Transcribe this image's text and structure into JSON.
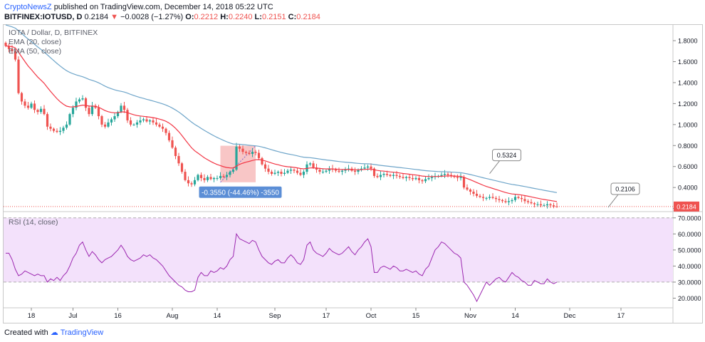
{
  "header": {
    "publisher": "CryptoNewsZ",
    "published_text": "published on TradingView.com, December 14, 2018 05:22 UTC",
    "symbol_line": "BITFINEX:IOTUSD, D",
    "last": "0.2184",
    "down_arrow": "▼",
    "change": "−0.0028 (−1.27%)",
    "o_label": "O:",
    "o_val": "0.2212",
    "h_label": "H:",
    "h_val": "0.2240",
    "l_label": "L:",
    "l_val": "0.2151",
    "c_label": "C:",
    "c_val": "0.2184"
  },
  "legend": {
    "title": "IOTA / Dollar, D, BITFINEX",
    "ema20": "EMA (20, close)",
    "ema50": "EMA (50, close)",
    "rsi": "RSI (14, close)"
  },
  "footer": {
    "created_with": "Created with",
    "brand": "TradingView"
  },
  "colors": {
    "up": "#26a69a",
    "down": "#ef5350",
    "ema20": "#f23645",
    "ema50": "#6ea5c9",
    "rsi": "#9c27b0",
    "rsi_band": "#f3e1fb",
    "price_tag": "#ef5350",
    "measure_box": "#f5b3b3",
    "measure_label": "#5b8ed6"
  },
  "chart_data": [
    {
      "type": "candlestick",
      "title": "IOTA / Dollar, D, BITFINEX",
      "ylim": [
        0.17,
        1.95
      ],
      "y_ticks": [
        "1.8000",
        "1.6000",
        "1.4000",
        "1.2000",
        "1.0000",
        "0.8000",
        "0.6000",
        "0.4000",
        "0.2000"
      ],
      "x_ticks": [
        {
          "label": "18",
          "i": 8
        },
        {
          "label": "Jul",
          "i": 21
        },
        {
          "label": "16",
          "i": 35
        },
        {
          "label": "Aug",
          "i": 52
        },
        {
          "label": "14",
          "i": 66
        },
        {
          "label": "Sep",
          "i": 84
        },
        {
          "label": "17",
          "i": 100
        },
        {
          "label": "Oct",
          "i": 114
        },
        {
          "label": "15",
          "i": 128
        },
        {
          "label": "Nov",
          "i": 145
        },
        {
          "label": "14",
          "i": 159
        },
        {
          "label": "Dec",
          "i": 176
        },
        {
          "label": "17",
          "i": 192
        }
      ],
      "last_price_tag": "0.2184",
      "callouts": [
        {
          "label": "0.5324",
          "i": 151,
          "value": 0.5324
        },
        {
          "label": "0.2106",
          "i": 188,
          "value": 0.2106
        }
      ],
      "measure": {
        "label": "-0.3550 (-44.46%) -3550",
        "i_start": 67,
        "i_end": 78,
        "v_from": 0.798,
        "v_to": 0.45
      },
      "close": [
        1.75,
        1.72,
        1.7,
        1.62,
        1.3,
        1.22,
        1.18,
        1.16,
        1.2,
        1.14,
        1.12,
        1.15,
        1.1,
        0.98,
        0.96,
        0.94,
        0.93,
        0.94,
        0.97,
        1.0,
        1.1,
        1.16,
        1.22,
        1.24,
        1.25,
        1.16,
        1.1,
        1.18,
        1.16,
        1.08,
        1.0,
        0.98,
        1.02,
        1.05,
        1.08,
        1.12,
        1.18,
        1.14,
        1.04,
        1.0,
        1.0,
        1.02,
        1.04,
        1.05,
        1.03,
        1.04,
        1.02,
        1.0,
        0.98,
        0.96,
        0.92,
        0.85,
        0.78,
        0.7,
        0.63,
        0.55,
        0.47,
        0.44,
        0.43,
        0.47,
        0.52,
        0.49,
        0.47,
        0.5,
        0.48,
        0.49,
        0.49,
        0.51,
        0.5,
        0.52,
        0.55,
        0.57,
        0.79,
        0.77,
        0.74,
        0.73,
        0.72,
        0.74,
        0.73,
        0.68,
        0.62,
        0.58,
        0.55,
        0.53,
        0.54,
        0.55,
        0.53,
        0.54,
        0.56,
        0.57,
        0.56,
        0.54,
        0.52,
        0.55,
        0.62,
        0.63,
        0.59,
        0.57,
        0.55,
        0.55,
        0.56,
        0.58,
        0.57,
        0.56,
        0.55,
        0.56,
        0.57,
        0.58,
        0.56,
        0.55,
        0.57,
        0.58,
        0.59,
        0.6,
        0.58,
        0.51,
        0.5,
        0.52,
        0.53,
        0.52,
        0.51,
        0.52,
        0.51,
        0.5,
        0.49,
        0.5,
        0.49,
        0.48,
        0.49,
        0.47,
        0.46,
        0.48,
        0.49,
        0.5,
        0.51,
        0.51,
        0.52,
        0.53,
        0.52,
        0.51,
        0.5,
        0.49,
        0.5,
        0.4,
        0.38,
        0.36,
        0.34,
        0.32,
        0.31,
        0.3,
        0.3,
        0.31,
        0.3,
        0.29,
        0.28,
        0.27,
        0.26,
        0.27,
        0.28,
        0.31,
        0.3,
        0.29,
        0.27,
        0.26,
        0.25,
        0.24,
        0.24,
        0.23,
        0.23,
        0.24,
        0.23,
        0.22,
        0.2184
      ],
      "ema20_range_note": "",
      "series": [
        {
          "name": "EMA (20, close)"
        },
        {
          "name": "EMA (50, close)"
        }
      ]
    },
    {
      "type": "line",
      "title": "RSI (14, close)",
      "ylim": [
        14,
        73
      ],
      "y_ticks": [
        "70.0000",
        "60.0000",
        "50.0000",
        "40.0000",
        "30.0000",
        "20.0000"
      ],
      "band": [
        30,
        70
      ],
      "values": [
        48,
        48,
        44,
        38,
        34,
        35,
        37,
        36,
        35,
        34,
        35,
        34,
        34,
        30,
        32,
        31,
        33,
        31,
        34,
        36,
        40,
        45,
        48,
        53,
        55,
        50,
        46,
        49,
        47,
        44,
        42,
        44,
        45,
        46,
        48,
        50,
        53,
        50,
        46,
        44,
        43,
        44,
        45,
        47,
        46,
        47,
        45,
        44,
        42,
        40,
        37,
        34,
        32,
        30,
        28,
        27,
        25,
        24,
        24,
        25,
        33,
        36,
        34,
        34,
        37,
        36,
        37,
        39,
        38,
        40,
        44,
        46,
        60,
        57,
        56,
        55,
        54,
        56,
        55,
        50,
        46,
        44,
        42,
        41,
        43,
        44,
        42,
        42,
        45,
        47,
        45,
        42,
        41,
        44,
        53,
        55,
        50,
        48,
        47,
        46,
        48,
        51,
        49,
        48,
        47,
        48,
        50,
        52,
        49,
        47,
        50,
        52,
        55,
        57,
        52,
        36,
        36,
        39,
        40,
        39,
        38,
        40,
        39,
        37,
        37,
        38,
        37,
        36,
        37,
        35,
        34,
        38,
        40,
        45,
        50,
        52,
        55,
        54,
        52,
        50,
        48,
        47,
        45,
        30,
        28,
        25,
        22,
        18,
        22,
        26,
        30,
        28,
        30,
        32,
        33,
        31,
        30,
        33,
        36,
        34,
        33,
        31,
        30,
        28,
        28,
        31,
        30,
        29,
        29,
        32,
        30,
        29,
        30
      ]
    }
  ]
}
